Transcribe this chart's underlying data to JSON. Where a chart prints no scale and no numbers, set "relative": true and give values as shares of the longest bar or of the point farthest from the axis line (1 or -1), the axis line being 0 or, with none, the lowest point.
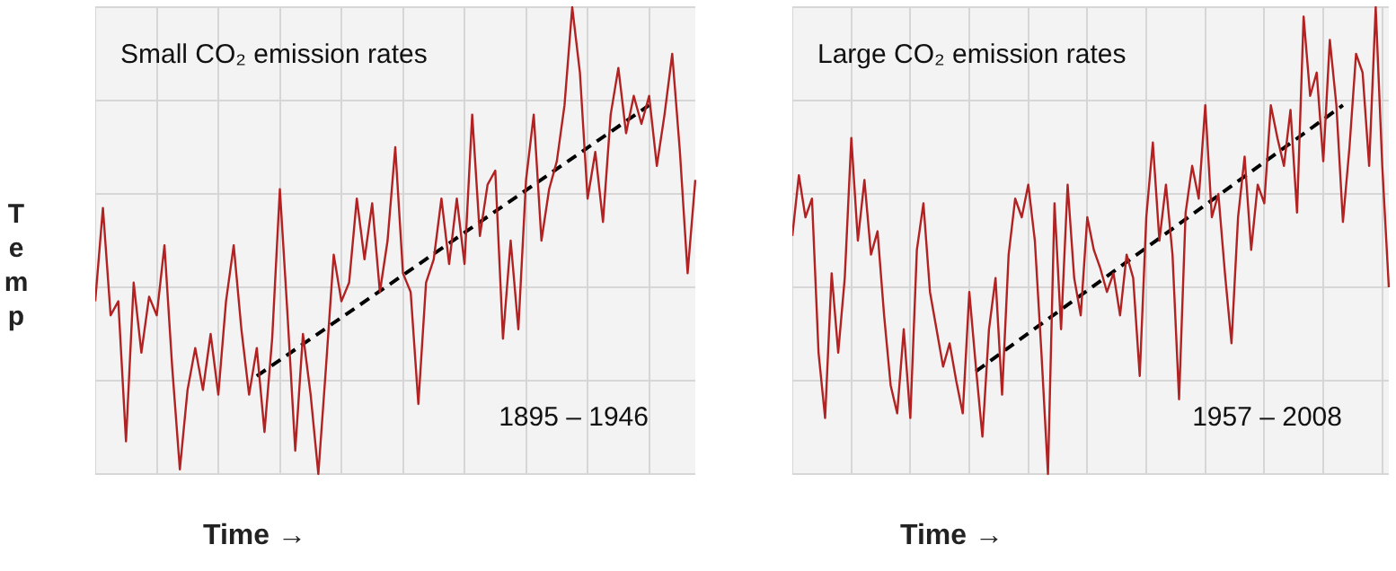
{
  "chart_data": [
    {
      "type": "line",
      "relative": true,
      "title": "Small CO₂ emission rates",
      "xlabel": "Time →",
      "ylabel": "Temp",
      "annotations": [
        "1895 – 1946"
      ],
      "grid": true,
      "categories": [
        null,
        null,
        null,
        null,
        null,
        null,
        null,
        null,
        null,
        null,
        null,
        null,
        null,
        null,
        null,
        null,
        null,
        null,
        null,
        null,
        null,
        null,
        null,
        null,
        null,
        null,
        null,
        null,
        null,
        null,
        null,
        null,
        null,
        null,
        null,
        null,
        null,
        null,
        null,
        null,
        null,
        null,
        null,
        null,
        null,
        null,
        null,
        null,
        null,
        null,
        null,
        null,
        null,
        null,
        null,
        null,
        null,
        null,
        null,
        null,
        null,
        null,
        null,
        null,
        null,
        null,
        null,
        null,
        null,
        null,
        null,
        null,
        null,
        null,
        null,
        null,
        null,
        null,
        null
      ],
      "series": [
        {
          "color": "#b22222",
          "values": [
            0.37,
            0.57,
            0.34,
            0.37,
            0.07,
            0.41,
            0.26,
            0.38,
            0.34,
            0.49,
            0.23,
            0.01,
            0.18,
            0.27,
            0.18,
            0.3,
            0.17,
            0.37,
            0.49,
            0.31,
            0.17,
            0.27,
            0.09,
            0.29,
            0.61,
            0.34,
            0.05,
            0.3,
            0.17,
            0,
            0.23,
            0.47,
            0.37,
            0.41,
            0.59,
            0.46,
            0.58,
            0.39,
            0.5,
            0.7,
            0.43,
            0.39,
            0.15,
            0.41,
            0.46,
            0.59,
            0.45,
            0.59,
            0.45,
            0.77,
            0.51,
            0.62,
            0.65,
            0.29,
            0.5,
            0.31,
            0.63,
            0.77,
            0.5,
            0.61,
            0.67,
            0.79,
            1,
            0.86,
            0.59,
            0.69,
            0.54,
            0.77,
            0.87,
            0.73,
            0.81,
            0.75,
            0.81,
            0.66,
            0.77,
            0.9,
            0.69,
            0.43,
            0.63
          ]
        },
        {
          "color": "#000000",
          "type": "line",
          "line_style": "dashed",
          "values": [
            null,
            null,
            null,
            null,
            null,
            null,
            null,
            null,
            null,
            null,
            null,
            null,
            null,
            null,
            null,
            null,
            null,
            null,
            null,
            null,
            null,
            0.21,
            null,
            null,
            null,
            null,
            null,
            null,
            null,
            null,
            null,
            null,
            null,
            null,
            null,
            null,
            null,
            null,
            null,
            null,
            null,
            null,
            null,
            null,
            null,
            null,
            null,
            null,
            null,
            null,
            null,
            null,
            null,
            null,
            null,
            null,
            null,
            null,
            null,
            null,
            null,
            null,
            null,
            null,
            null,
            null,
            null,
            null,
            null,
            null,
            null,
            null,
            0.79,
            null,
            null,
            null,
            null,
            null,
            null
          ]
        }
      ]
    },
    {
      "type": "line",
      "relative": true,
      "title": "Large CO₂ emission rates",
      "xlabel": "Time →",
      "annotations": [
        "1957 – 2008"
      ],
      "grid": true,
      "categories": [
        null,
        null,
        null,
        null,
        null,
        null,
        null,
        null,
        null,
        null,
        null,
        null,
        null,
        null,
        null,
        null,
        null,
        null,
        null,
        null,
        null,
        null,
        null,
        null,
        null,
        null,
        null,
        null,
        null,
        null,
        null,
        null,
        null,
        null,
        null,
        null,
        null,
        null,
        null,
        null,
        null,
        null,
        null,
        null,
        null,
        null,
        null,
        null,
        null,
        null,
        null,
        null,
        null,
        null,
        null,
        null,
        null,
        null,
        null,
        null,
        null,
        null,
        null,
        null,
        null,
        null,
        null,
        null,
        null,
        null,
        null,
        null,
        null,
        null,
        null,
        null,
        null,
        null,
        null,
        null,
        null,
        null,
        null,
        null,
        null,
        null,
        null,
        null,
        null,
        null,
        null,
        null
      ],
      "series": [
        {
          "color": "#b22222",
          "values": [
            0.51,
            0.64,
            0.55,
            0.59,
            0.26,
            0.12,
            0.43,
            0.26,
            0.42,
            0.72,
            0.5,
            0.63,
            0.47,
            0.52,
            0.34,
            0.19,
            0.13,
            0.31,
            0.12,
            0.48,
            0.58,
            0.39,
            0.31,
            0.23,
            0.28,
            0.2,
            0.13,
            0.39,
            0.23,
            0.08,
            0.31,
            0.42,
            0.17,
            0.47,
            0.59,
            0.55,
            0.62,
            0.5,
            0.26,
            0,
            0.58,
            0.31,
            0.62,
            0.42,
            0.34,
            0.55,
            0.48,
            0.44,
            0.39,
            0.43,
            0.34,
            0.47,
            0.42,
            0.21,
            0.55,
            0.71,
            0.5,
            0.62,
            0.47,
            0.16,
            0.56,
            0.66,
            0.59,
            0.79,
            0.55,
            0.6,
            0.43,
            0.28,
            0.55,
            0.68,
            0.48,
            0.62,
            0.58,
            0.79,
            0.72,
            0.66,
            0.78,
            0.56,
            0.98,
            0.81,
            0.86,
            0.67,
            0.93,
            0.79,
            0.54,
            0.7,
            0.9,
            0.86,
            0.66,
            1,
            0.66,
            0.4
          ]
        },
        {
          "color": "#000000",
          "type": "line",
          "line_style": "dashed",
          "values": [
            null,
            null,
            null,
            null,
            null,
            null,
            null,
            null,
            null,
            null,
            null,
            null,
            null,
            null,
            null,
            null,
            null,
            null,
            null,
            null,
            null,
            null,
            null,
            null,
            null,
            null,
            null,
            null,
            0.22,
            null,
            null,
            null,
            null,
            null,
            null,
            null,
            null,
            null,
            null,
            null,
            null,
            null,
            null,
            null,
            null,
            null,
            null,
            null,
            null,
            null,
            null,
            null,
            null,
            null,
            null,
            null,
            null,
            null,
            null,
            null,
            null,
            null,
            null,
            null,
            null,
            null,
            null,
            null,
            null,
            null,
            null,
            null,
            null,
            null,
            null,
            null,
            null,
            null,
            null,
            null,
            null,
            null,
            null,
            null,
            0.79,
            null,
            null,
            null,
            null,
            null,
            null,
            null
          ]
        }
      ]
    }
  ]
}
